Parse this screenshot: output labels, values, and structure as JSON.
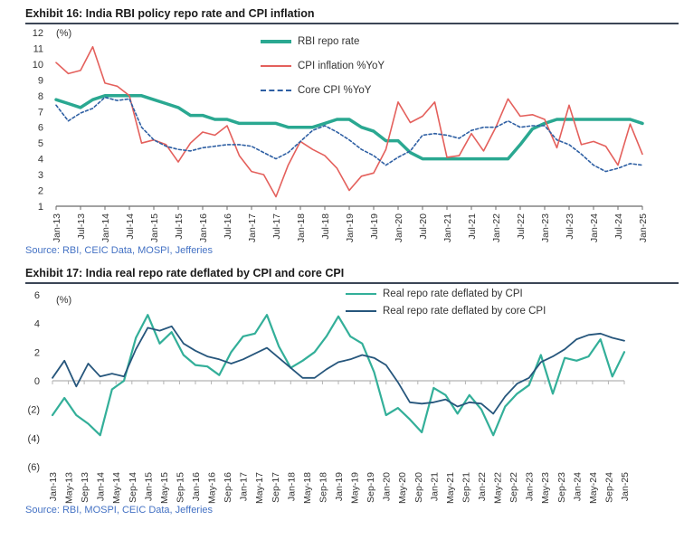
{
  "chart_data": [
    {
      "type": "line",
      "title": "Exhibit 16: India RBI policy repo rate and CPI inflation",
      "unit_label": "(%)",
      "source": "Source: RBI, CEIC Data, MOSPI, Jefferies",
      "x_start": "Jan-13",
      "x_end": "Jan-25",
      "x_step_months": 3,
      "x_total_months": 144,
      "ylim": [
        1,
        12
      ],
      "yticks": {
        "values": [
          12,
          11,
          10,
          9,
          8,
          7,
          6,
          5,
          4,
          3,
          2,
          1
        ],
        "labels": [
          "12",
          "11",
          "10",
          "9",
          "8",
          "7",
          "6",
          "5",
          "4",
          "3",
          "2",
          "1"
        ]
      },
      "axis_y": 1,
      "axis_color": "#6a6a6a",
      "grid": false,
      "legend_position": "top-right-inside",
      "xticks": {
        "step_months": 6,
        "labels": [
          "Jan-13",
          "Jul-13",
          "Jan-14",
          "Jul-14",
          "Jan-15",
          "Jul-15",
          "Jan-16",
          "Jul-16",
          "Jan-17",
          "Jul-17",
          "Jan-18",
          "Jul-18",
          "Jan-19",
          "Jul-19",
          "Jan-20",
          "Jul-20",
          "Jan-21",
          "Jul-21",
          "Jan-22",
          "Jul-22",
          "Jan-23",
          "Jul-23",
          "Jan-24",
          "Jul-24",
          "Jan-25"
        ]
      },
      "series": [
        {
          "name": "RBI repo rate",
          "color": "#2aa891",
          "width": 3.5,
          "dash": null,
          "values": [
            7.75,
            7.5,
            7.25,
            7.75,
            8.0,
            8.0,
            8.0,
            8.0,
            7.75,
            7.5,
            7.25,
            6.75,
            6.75,
            6.5,
            6.5,
            6.25,
            6.25,
            6.25,
            6.25,
            6.0,
            6.0,
            6.0,
            6.25,
            6.5,
            6.5,
            6.0,
            5.75,
            5.15,
            5.15,
            4.4,
            4.0,
            4.0,
            4.0,
            4.0,
            4.0,
            4.0,
            4.0,
            4.0,
            4.9,
            5.9,
            6.25,
            6.5,
            6.5,
            6.5,
            6.5,
            6.5,
            6.5,
            6.5,
            6.25
          ]
        },
        {
          "name": "CPI inflation %YoY",
          "color": "#e4605c",
          "width": 1.6,
          "dash": null,
          "values": [
            10.1,
            9.4,
            9.6,
            11.1,
            8.8,
            8.6,
            8.0,
            5.0,
            5.2,
            4.9,
            3.8,
            5.0,
            5.7,
            5.5,
            6.1,
            4.2,
            3.2,
            3.0,
            1.6,
            3.6,
            5.1,
            4.6,
            4.2,
            3.4,
            2.0,
            2.9,
            3.1,
            4.6,
            7.6,
            6.3,
            6.7,
            7.6,
            4.1,
            4.2,
            5.6,
            4.5,
            6.0,
            7.8,
            6.7,
            6.8,
            6.5,
            4.7,
            7.4,
            4.9,
            5.1,
            4.8,
            3.6,
            6.2,
            4.3
          ]
        },
        {
          "name": "Core CPI %YoY",
          "color": "#2e5fa3",
          "width": 1.6,
          "dash": "3 2.5",
          "values": [
            7.4,
            6.4,
            6.9,
            7.2,
            7.9,
            7.7,
            7.8,
            6.0,
            5.2,
            4.8,
            4.6,
            4.5,
            4.7,
            4.8,
            4.9,
            4.9,
            4.8,
            4.4,
            4.0,
            4.4,
            5.1,
            5.8,
            6.1,
            5.7,
            5.2,
            4.6,
            4.2,
            3.6,
            4.1,
            4.5,
            5.5,
            5.6,
            5.5,
            5.3,
            5.8,
            6.0,
            6.0,
            6.4,
            6.0,
            6.1,
            6.1,
            5.2,
            4.9,
            4.3,
            3.6,
            3.2,
            3.4,
            3.7,
            3.6
          ]
        }
      ]
    },
    {
      "type": "line",
      "title": "Exhibit 17: India real repo rate deflated by CPI and core CPI",
      "unit_label": "(%)",
      "source": "Source: RBI, MOSPI, CEIC Data, Jefferies",
      "x_start": "Jan-13",
      "x_end": "Jan-25",
      "x_step_months": 3,
      "x_total_months": 144,
      "ylim": [
        -6,
        6
      ],
      "yticks": {
        "values": [
          6,
          4,
          2,
          0,
          -2,
          -4,
          -6
        ],
        "labels": [
          "6",
          "4",
          "2",
          "0",
          "(2)",
          "(4)",
          "(6)"
        ]
      },
      "axis_y": 0,
      "axis_color": "#b3b3b3",
      "grid": false,
      "legend_position": "top-right-inside",
      "xticks": {
        "step_months": 4,
        "labels": [
          "Jan-13",
          "May-13",
          "Sep-13",
          "Jan-14",
          "May-14",
          "Sep-14",
          "Jan-15",
          "May-15",
          "Sep-15",
          "Jan-16",
          "May-16",
          "Sep-16",
          "Jan-17",
          "May-17",
          "Sep-17",
          "Jan-18",
          "May-18",
          "Sep-18",
          "Jan-19",
          "May-19",
          "Sep-19",
          "Jan-20",
          "May-20",
          "Sep-20",
          "Jan-21",
          "May-21",
          "Sep-21",
          "Jan-22",
          "May-22",
          "Sep-22",
          "Jan-23",
          "May-23",
          "Sep-23",
          "Jan-24",
          "May-24",
          "Sep-24",
          "Jan-25"
        ]
      },
      "series": [
        {
          "name": "Real repo rate deflated by CPI",
          "color": "#33af99",
          "width": 2.2,
          "dash": null,
          "values": [
            -2.4,
            -1.2,
            -2.4,
            -3.0,
            -3.8,
            -0.6,
            0.0,
            3.0,
            4.6,
            2.6,
            3.4,
            1.8,
            1.1,
            1.0,
            0.4,
            2.0,
            3.1,
            3.3,
            4.6,
            2.4,
            0.9,
            1.4,
            2.0,
            3.1,
            4.5,
            3.1,
            2.6,
            0.6,
            -2.4,
            -1.9,
            -2.7,
            -3.6,
            -0.5,
            -1.0,
            -2.3,
            -1.0,
            -2.0,
            -3.8,
            -1.8,
            -0.9,
            -0.3,
            1.8,
            -0.9,
            1.6,
            1.4,
            1.7,
            2.9,
            0.3,
            2.0
          ]
        },
        {
          "name": "Real repo rate deflated by core CPI",
          "color": "#26567c",
          "width": 1.8,
          "dash": null,
          "values": [
            0.2,
            1.4,
            -0.4,
            1.2,
            0.3,
            0.5,
            0.3,
            2.2,
            3.7,
            3.5,
            3.8,
            2.6,
            2.1,
            1.7,
            1.5,
            1.2,
            1.5,
            1.9,
            2.3,
            1.6,
            0.9,
            0.2,
            0.2,
            0.8,
            1.3,
            1.5,
            1.8,
            1.6,
            1.1,
            -0.1,
            -1.5,
            -1.6,
            -1.5,
            -1.3,
            -1.8,
            -1.5,
            -1.6,
            -2.3,
            -1.1,
            -0.2,
            0.2,
            1.3,
            1.7,
            2.2,
            2.9,
            3.2,
            3.3,
            3.0,
            2.8
          ]
        }
      ]
    }
  ]
}
